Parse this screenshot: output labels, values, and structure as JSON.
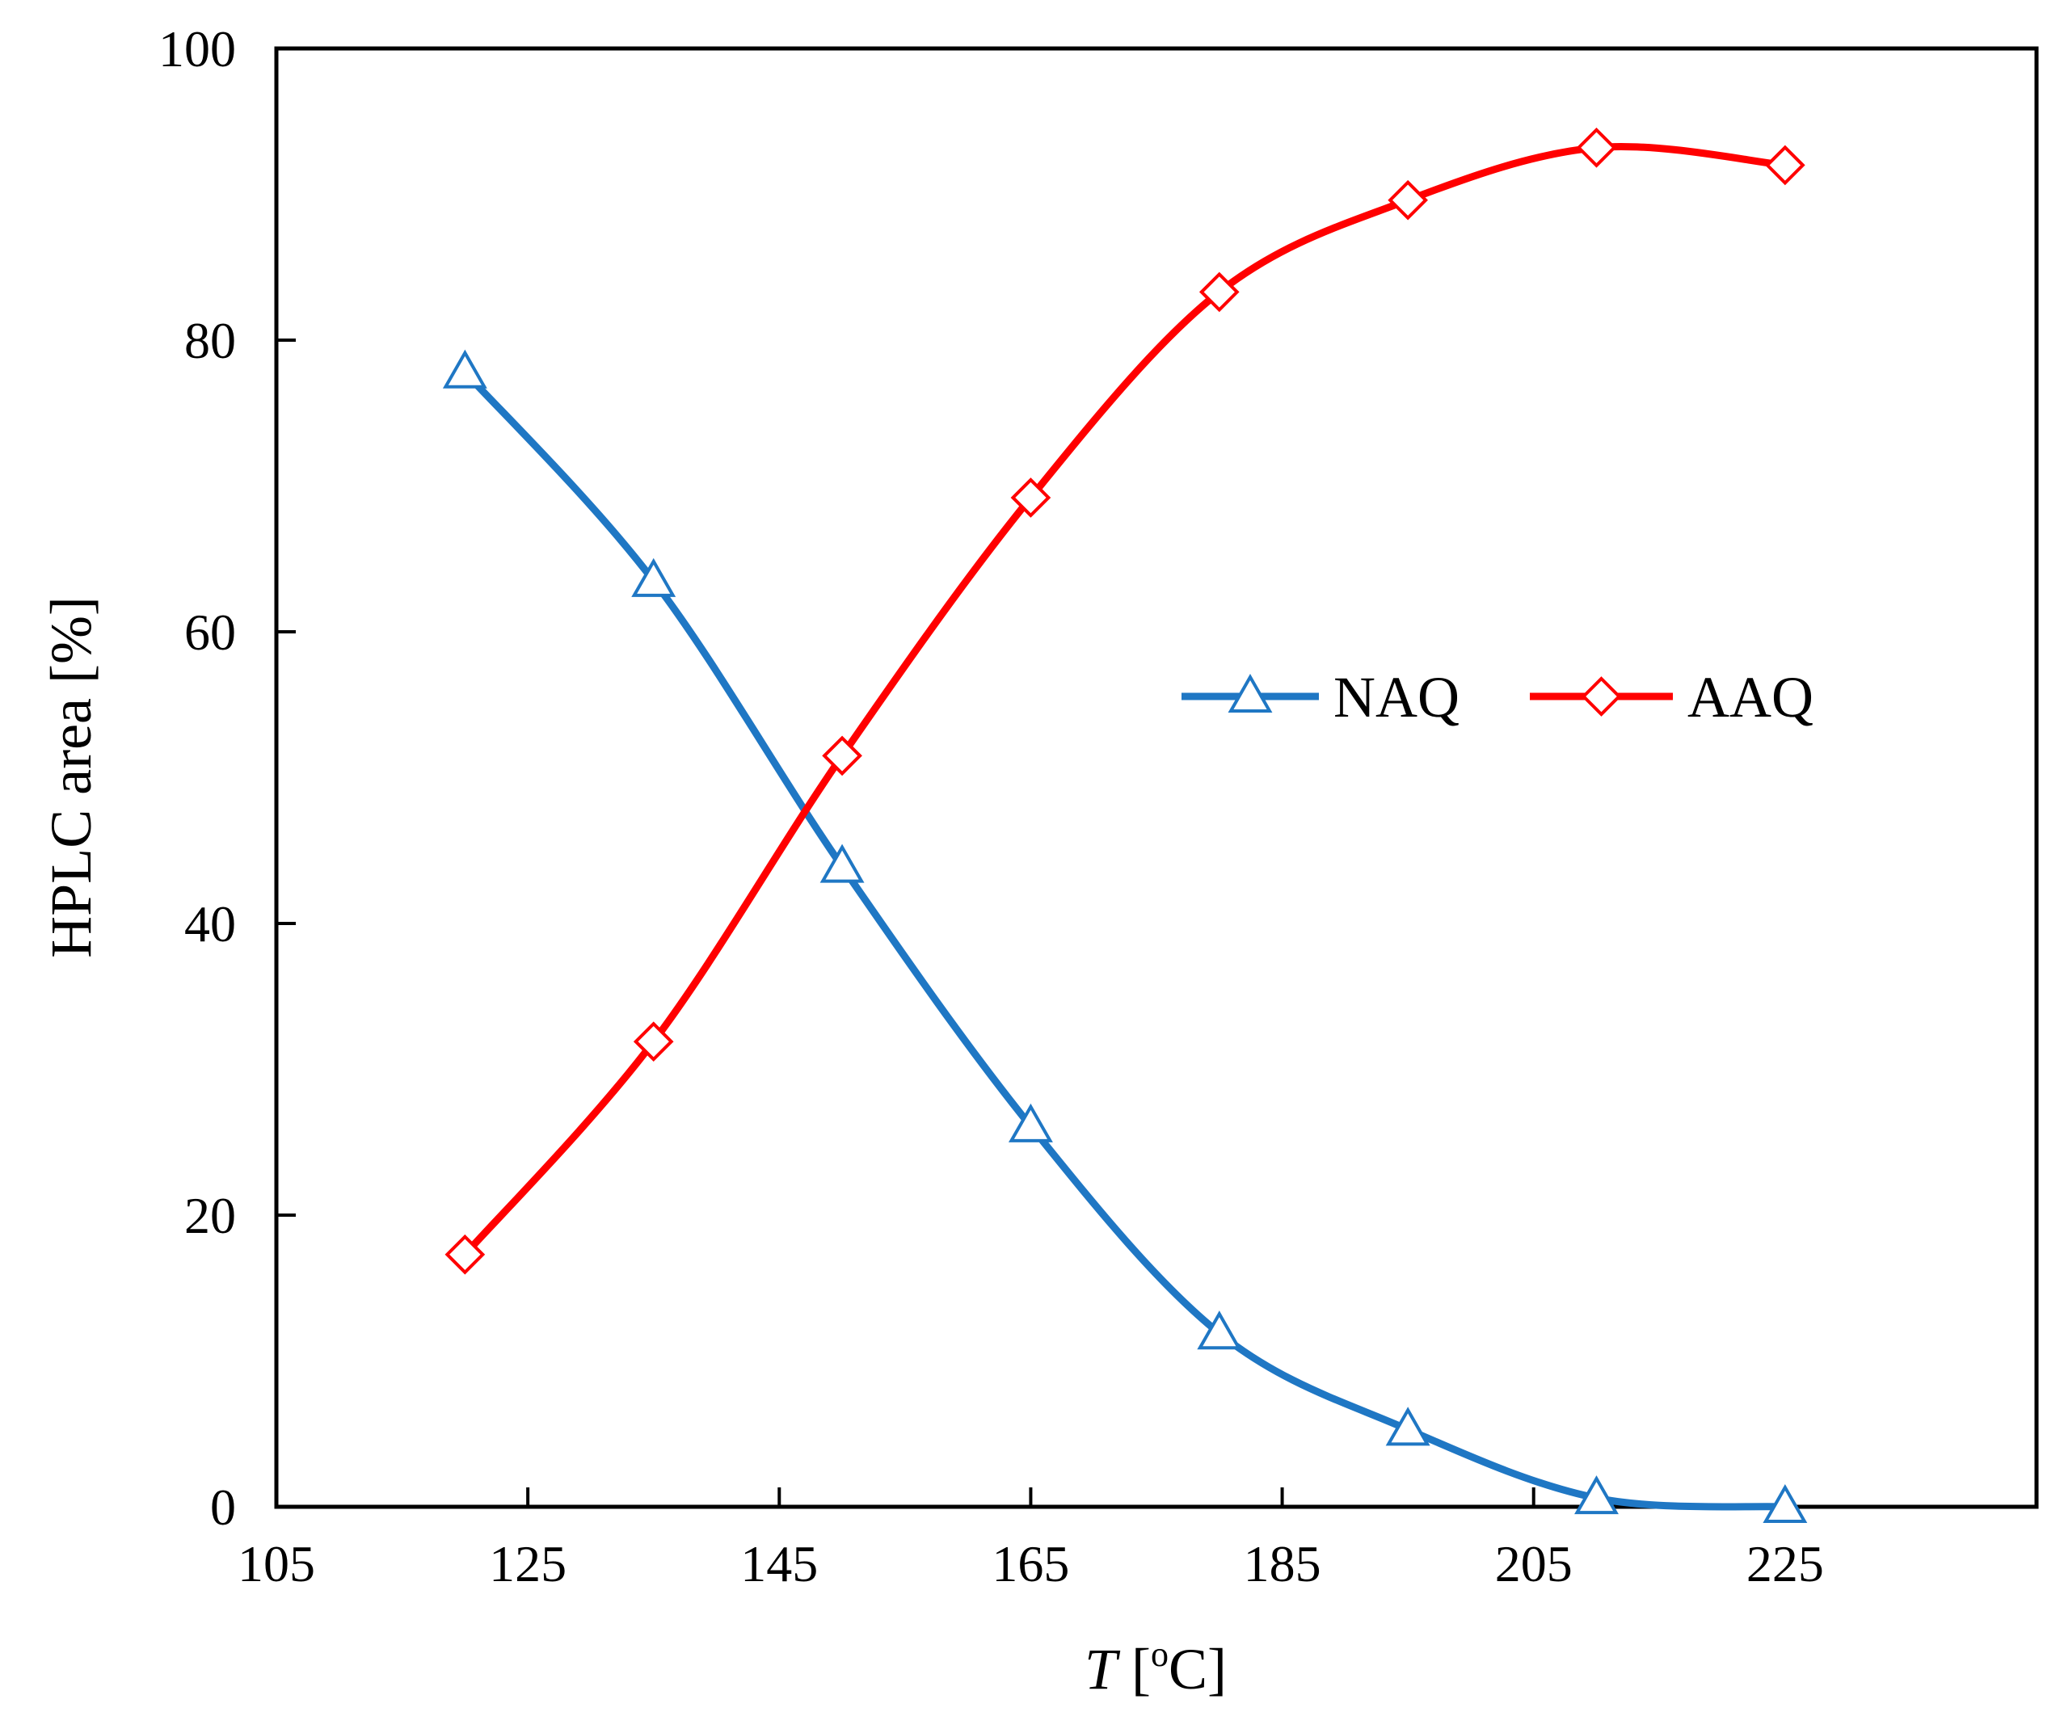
{
  "chart_data": {
    "type": "line",
    "title": "",
    "xlabel_var": "T",
    "xlabel_unit_open": " [",
    "xlabel_unit_sup": "o",
    "xlabel_unit_rest": "C]",
    "ylabel": "HPLC area [%]",
    "xlim": [
      105,
      245
    ],
    "ylim": [
      0,
      100
    ],
    "xticks": [
      105,
      125,
      145,
      165,
      185,
      205,
      225
    ],
    "yticks": [
      0,
      20,
      40,
      60,
      80,
      100
    ],
    "grid": false,
    "legend_position": "center-right",
    "series": [
      {
        "name": "NAQ",
        "color": "#1f77c4",
        "marker": "triangle",
        "x": [
          120,
          135,
          150,
          165,
          180,
          195,
          210,
          225
        ],
        "y": [
          77.8,
          63.5,
          43.9,
          26.1,
          11.9,
          5.3,
          0.6,
          0
        ]
      },
      {
        "name": "AAQ",
        "color": "#ff0000",
        "marker": "diamond",
        "x": [
          120,
          135,
          150,
          165,
          180,
          195,
          210,
          225
        ],
        "y": [
          17.3,
          31.9,
          51.5,
          69.2,
          83.3,
          89.6,
          93.2,
          92.0
        ]
      }
    ]
  }
}
